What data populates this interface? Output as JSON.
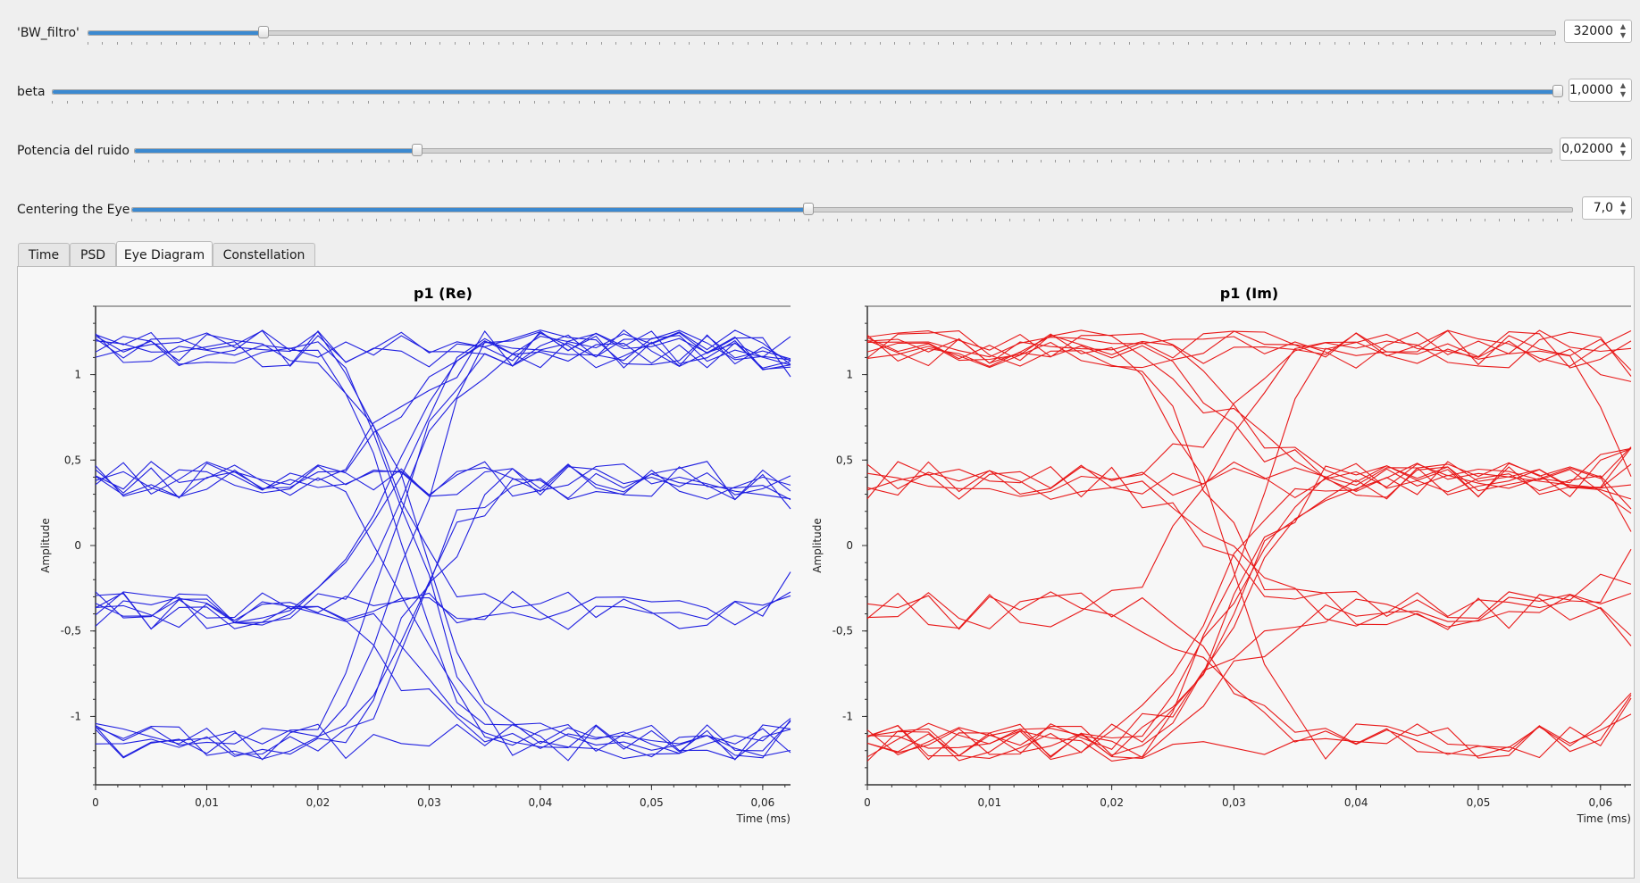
{
  "sliders": [
    {
      "label": "'BW_filtro'",
      "value_text": "32000",
      "fraction": 0.12
    },
    {
      "label": "beta",
      "value_text": "1,0000",
      "fraction": 1.0
    },
    {
      "label": "Potencia del ruido",
      "value_text": "0,02000",
      "fraction": 0.2
    },
    {
      "label": "Centering the Eye",
      "value_text": "7,0",
      "fraction": 0.47
    }
  ],
  "tabs": [
    {
      "label": "Time",
      "active": false
    },
    {
      "label": "PSD",
      "active": false
    },
    {
      "label": "Eye Diagram",
      "active": true
    },
    {
      "label": "Constellation",
      "active": false
    }
  ],
  "icons": {
    "spin_up": "arrow-up-icon",
    "spin_down": "arrow-down-icon"
  },
  "chart_data": [
    {
      "type": "line",
      "title": "p1 (Re)",
      "xlabel": "Time (ms)",
      "ylabel": "Amplitude",
      "xlim": [
        0,
        0.0625
      ],
      "ylim": [
        -1.4,
        1.4
      ],
      "xticks": [
        "0",
        "0,01",
        "0,02",
        "0,03",
        "0,04",
        "0,05",
        "0,06"
      ],
      "yticks": [
        "-1",
        "-0,5",
        "0",
        "0,5",
        "1"
      ],
      "color": "#1f1fe0",
      "levels": [
        -1.15,
        -0.38,
        0.38,
        1.15
      ],
      "trace_count": 26,
      "sample_step_ms": 0.0025,
      "transition_ms": [
        0.028,
        0.069
      ],
      "noise_amplitude": 0.07
    },
    {
      "type": "line",
      "title": "p1 (Im)",
      "xlabel": "Time (ms)",
      "ylabel": "Amplitude",
      "xlim": [
        0,
        0.0625
      ],
      "ylim": [
        -1.4,
        1.4
      ],
      "xticks": [
        "0",
        "0,01",
        "0,02",
        "0,03",
        "0,04",
        "0,05",
        "0,06"
      ],
      "yticks": [
        "-1",
        "-0,5",
        "0",
        "0,5",
        "1"
      ],
      "color": "#e81818",
      "levels": [
        -1.15,
        -0.38,
        0.38,
        1.15
      ],
      "trace_count": 26,
      "sample_step_ms": 0.0025,
      "transition_ms": [
        0.029,
        0.066
      ],
      "noise_amplitude": 0.07
    }
  ]
}
